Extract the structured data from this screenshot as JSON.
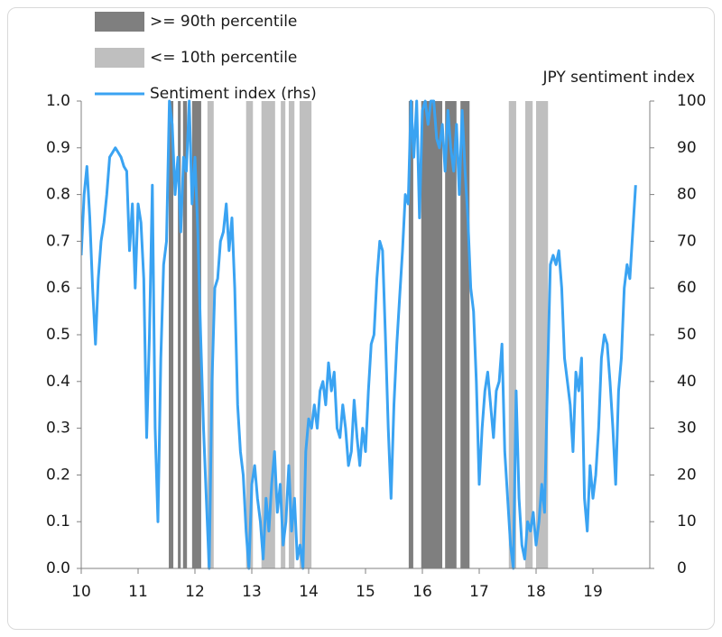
{
  "chart_data": {
    "type": "line",
    "annotation": "JPY sentiment index",
    "xlim": [
      10,
      20
    ],
    "xticks": [
      10,
      11,
      12,
      13,
      14,
      15,
      16,
      17,
      18,
      19
    ],
    "ylim": [
      0,
      1
    ],
    "yticks": [
      {
        "value": 0,
        "label": "0.0"
      },
      0.1,
      0.2,
      0.3,
      0.4,
      0.5,
      0.6,
      0.7,
      0.8,
      0.9,
      {
        "value": 1,
        "label": "1.0"
      }
    ],
    "y2lim": [
      0,
      100
    ],
    "y2ticks": [
      0,
      10,
      20,
      30,
      40,
      50,
      60,
      70,
      80,
      90,
      100
    ],
    "series": [
      {
        "name": ">= 90th percentile",
        "color": "#7f7f7f",
        "type": "band",
        "spans": [
          [
            11.54,
            11.62
          ],
          [
            11.7,
            11.75
          ],
          [
            11.79,
            11.86
          ],
          [
            11.95,
            12.11
          ],
          [
            15.76,
            15.84
          ],
          [
            15.98,
            16.35
          ],
          [
            16.4,
            16.6
          ],
          [
            16.67,
            16.83
          ]
        ]
      },
      {
        "name": "<= 10th percentile",
        "color": "#bfbfbf",
        "type": "band",
        "spans": [
          [
            12.22,
            12.33
          ],
          [
            12.9,
            13.02
          ],
          [
            13.17,
            13.41
          ],
          [
            13.51,
            13.59
          ],
          [
            13.65,
            13.75
          ],
          [
            13.84,
            14.05
          ],
          [
            17.52,
            17.65
          ],
          [
            17.81,
            17.94
          ],
          [
            18.0,
            18.21
          ]
        ]
      },
      {
        "name": "Sentiment index (rhs)",
        "color": "#3aa3f2",
        "type": "line",
        "axis": "y2",
        "x": [
          10.0,
          10.05,
          10.1,
          10.15,
          10.2,
          10.25,
          10.3,
          10.35,
          10.4,
          10.45,
          10.5,
          10.55,
          10.6,
          10.65,
          10.7,
          10.75,
          10.8,
          10.85,
          10.9,
          10.95,
          11.0,
          11.05,
          11.1,
          11.15,
          11.2,
          11.25,
          11.3,
          11.35,
          11.4,
          11.45,
          11.5,
          11.55,
          11.6,
          11.65,
          11.7,
          11.75,
          11.8,
          11.85,
          11.9,
          11.95,
          12.0,
          12.05,
          12.1,
          12.15,
          12.2,
          12.25,
          12.3,
          12.35,
          12.4,
          12.45,
          12.5,
          12.55,
          12.6,
          12.65,
          12.7,
          12.75,
          12.8,
          12.85,
          12.9,
          12.95,
          13.0,
          13.05,
          13.1,
          13.15,
          13.2,
          13.25,
          13.3,
          13.35,
          13.4,
          13.45,
          13.5,
          13.55,
          13.6,
          13.65,
          13.7,
          13.75,
          13.8,
          13.85,
          13.9,
          13.95,
          14.0,
          14.05,
          14.1,
          14.15,
          14.2,
          14.25,
          14.3,
          14.35,
          14.4,
          14.45,
          14.5,
          14.55,
          14.6,
          14.65,
          14.7,
          14.75,
          14.8,
          14.85,
          14.9,
          14.95,
          15.0,
          15.05,
          15.1,
          15.15,
          15.2,
          15.25,
          15.3,
          15.35,
          15.4,
          15.45,
          15.5,
          15.55,
          15.6,
          15.65,
          15.7,
          15.75,
          15.8,
          15.85,
          15.9,
          15.95,
          16.0,
          16.05,
          16.1,
          16.15,
          16.2,
          16.25,
          16.3,
          16.35,
          16.4,
          16.45,
          16.5,
          16.55,
          16.6,
          16.65,
          16.7,
          16.75,
          16.8,
          16.85,
          16.9,
          16.95,
          17.0,
          17.05,
          17.1,
          17.15,
          17.2,
          17.25,
          17.3,
          17.35,
          17.4,
          17.45,
          17.5,
          17.55,
          17.6,
          17.65,
          17.7,
          17.75,
          17.8,
          17.85,
          17.9,
          17.95,
          18.0,
          18.05,
          18.1,
          18.15,
          18.2,
          18.25,
          18.3,
          18.35,
          18.4,
          18.45,
          18.5,
          18.55,
          18.6,
          18.65,
          18.7,
          18.75,
          18.8,
          18.85,
          18.9,
          18.95,
          19.0,
          19.05,
          19.1,
          19.15,
          19.2,
          19.25,
          19.3,
          19.35,
          19.4,
          19.45,
          19.5,
          19.55,
          19.6,
          19.65,
          19.7,
          19.75
        ],
        "values": [
          67,
          80,
          86,
          75,
          60,
          48,
          62,
          70,
          74,
          80,
          88,
          89,
          90,
          89,
          88,
          86,
          85,
          68,
          78,
          60,
          78,
          74,
          62,
          28,
          50,
          82,
          30,
          10,
          45,
          65,
          70,
          100,
          95,
          80,
          88,
          72,
          88,
          85,
          100,
          78,
          88,
          72,
          50,
          30,
          15,
          0,
          40,
          60,
          62,
          70,
          72,
          78,
          68,
          75,
          60,
          35,
          25,
          20,
          8,
          0,
          18,
          22,
          15,
          10,
          2,
          15,
          8,
          18,
          25,
          12,
          18,
          5,
          10,
          22,
          8,
          15,
          2,
          5,
          0,
          25,
          32,
          30,
          35,
          30,
          38,
          40,
          35,
          44,
          38,
          42,
          30,
          28,
          35,
          30,
          22,
          25,
          36,
          28,
          22,
          30,
          25,
          38,
          48,
          50,
          62,
          70,
          68,
          50,
          30,
          15,
          35,
          48,
          58,
          68,
          80,
          78,
          100,
          88,
          100,
          75,
          98,
          100,
          95,
          100,
          100,
          92,
          90,
          95,
          85,
          98,
          90,
          85,
          95,
          80,
          98,
          85,
          75,
          60,
          55,
          40,
          18,
          30,
          38,
          42,
          35,
          28,
          38,
          40,
          48,
          25,
          15,
          5,
          0,
          38,
          15,
          5,
          2,
          10,
          8,
          12,
          5,
          10,
          18,
          12,
          40,
          65,
          67,
          65,
          68,
          60,
          45,
          40,
          35,
          25,
          42,
          38,
          45,
          15,
          8,
          22,
          15,
          20,
          30,
          45,
          50,
          48,
          40,
          30,
          18,
          38,
          45,
          60,
          65,
          62,
          72,
          82
        ]
      }
    ]
  }
}
